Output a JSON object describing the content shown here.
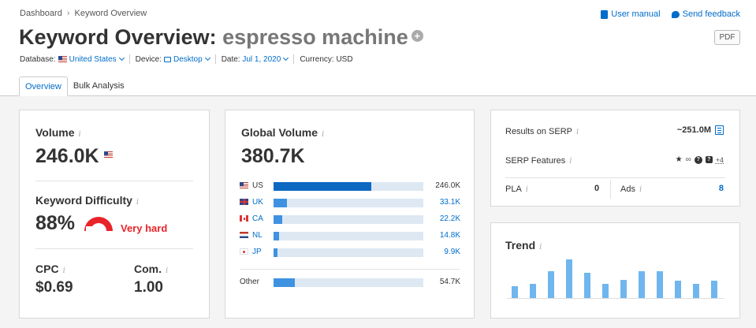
{
  "breadcrumb": {
    "root": "Dashboard",
    "current": "Keyword Overview"
  },
  "top_links": {
    "manual": "User manual",
    "feedback": "Send feedback"
  },
  "title": {
    "prefix": "Keyword Overview:",
    "keyword": "espresso machine"
  },
  "pdf_label": "PDF",
  "filters": {
    "database_label": "Database:",
    "database_value": "United States",
    "device_label": "Device:",
    "device_value": "Desktop",
    "date_label": "Date:",
    "date_value": "Jul 1, 2020",
    "currency_label": "Currency:",
    "currency_value": "USD"
  },
  "tabs": [
    {
      "label": "Overview"
    },
    {
      "label": "Bulk Analysis"
    }
  ],
  "volume": {
    "label": "Volume",
    "info": "i",
    "value": "246.0K"
  },
  "difficulty": {
    "label": "Keyword Difficulty",
    "info": "i",
    "value": "88%",
    "level": "Very hard",
    "percent": 88
  },
  "cpc": {
    "label": "CPC",
    "info": "i",
    "value": "$0.69"
  },
  "competition": {
    "label": "Com.",
    "info": "i",
    "value": "1.00"
  },
  "global_volume": {
    "label": "Global Volume",
    "info": "i",
    "value": "380.7K",
    "countries": [
      {
        "code": "US",
        "value": "246.0K",
        "fraction": 0.65
      },
      {
        "code": "UK",
        "value": "33.1K",
        "fraction": 0.087
      },
      {
        "code": "CA",
        "value": "22.2K",
        "fraction": 0.058
      },
      {
        "code": "NL",
        "value": "14.8K",
        "fraction": 0.039
      },
      {
        "code": "JP",
        "value": "9.9K",
        "fraction": 0.026
      }
    ],
    "other": {
      "code": "Other",
      "value": "54.7K",
      "fraction": 0.144
    }
  },
  "serp": {
    "results_label": "Results on SERP",
    "results_info": "i",
    "results_value": "~251.0M",
    "features_label": "SERP Features",
    "features_info": "i",
    "features_more": "+4",
    "pla_label": "PLA",
    "pla_info": "i",
    "pla_value": "0",
    "ads_label": "Ads",
    "ads_info": "i",
    "ads_value": "8"
  },
  "trend": {
    "label": "Trend",
    "info": "i",
    "values": [
      0.28,
      0.35,
      0.65,
      0.95,
      0.62,
      0.35,
      0.45,
      0.65,
      0.65,
      0.42,
      0.35,
      0.42
    ]
  }
}
